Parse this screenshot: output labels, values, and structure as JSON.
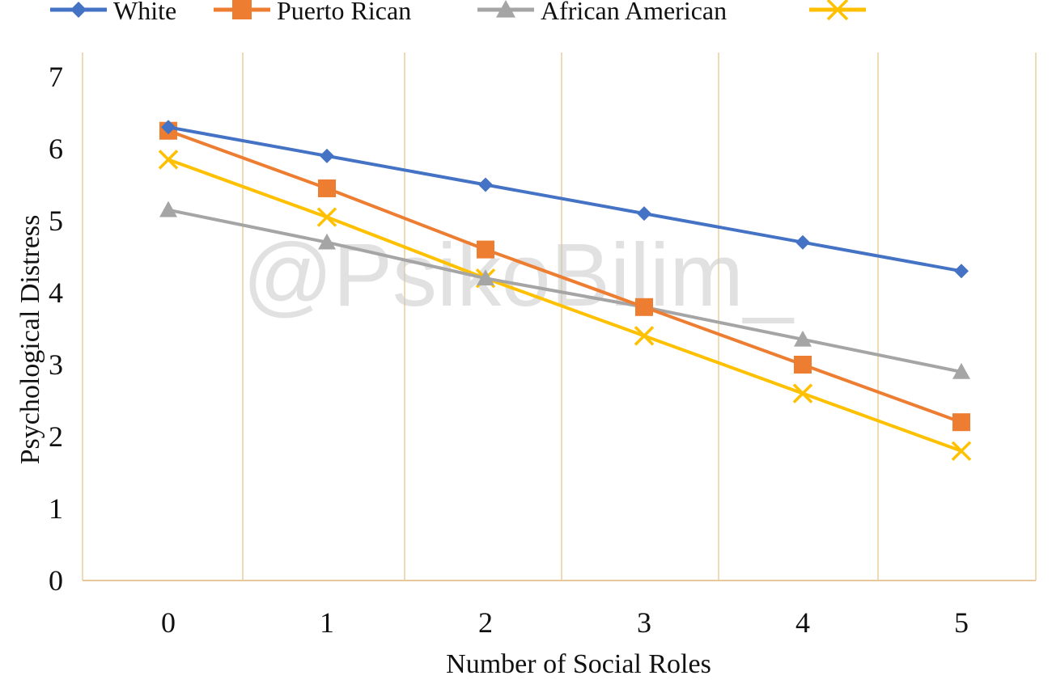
{
  "chart_data": {
    "type": "line",
    "title": "",
    "xlabel": "Number  of Social Roles",
    "ylabel": "Psychological Distress",
    "categories": [
      "0",
      "1",
      "2",
      "3",
      "4",
      "5"
    ],
    "x": [
      0,
      1,
      2,
      3,
      4,
      5
    ],
    "ylim": [
      0,
      7
    ],
    "yticks": [
      "0",
      "1",
      "2",
      "3",
      "4",
      "5",
      "6",
      "7"
    ],
    "grid": "vertical",
    "legend_position": "top",
    "series": [
      {
        "name": "White",
        "color": "#4472c4",
        "marker": "diamond",
        "values": [
          6.3,
          5.9,
          5.5,
          5.1,
          4.7,
          4.3
        ]
      },
      {
        "name": "Puerto Rican",
        "color": "#ed7d31",
        "marker": "square",
        "values": [
          6.25,
          5.45,
          4.6,
          3.8,
          3.0,
          2.2
        ]
      },
      {
        "name": "African American",
        "color": "#a5a5a5",
        "marker": "triangle",
        "values": [
          5.15,
          4.7,
          4.2,
          3.8,
          3.35,
          2.9
        ]
      },
      {
        "name": "",
        "color": "#ffc000",
        "marker": "x",
        "values": [
          5.85,
          5.05,
          4.2,
          3.4,
          2.6,
          1.8
        ]
      }
    ]
  },
  "watermark": "@PsikoBilim_",
  "colors": {
    "grid": "#f0d9b5",
    "axis": "#e6c89a"
  }
}
